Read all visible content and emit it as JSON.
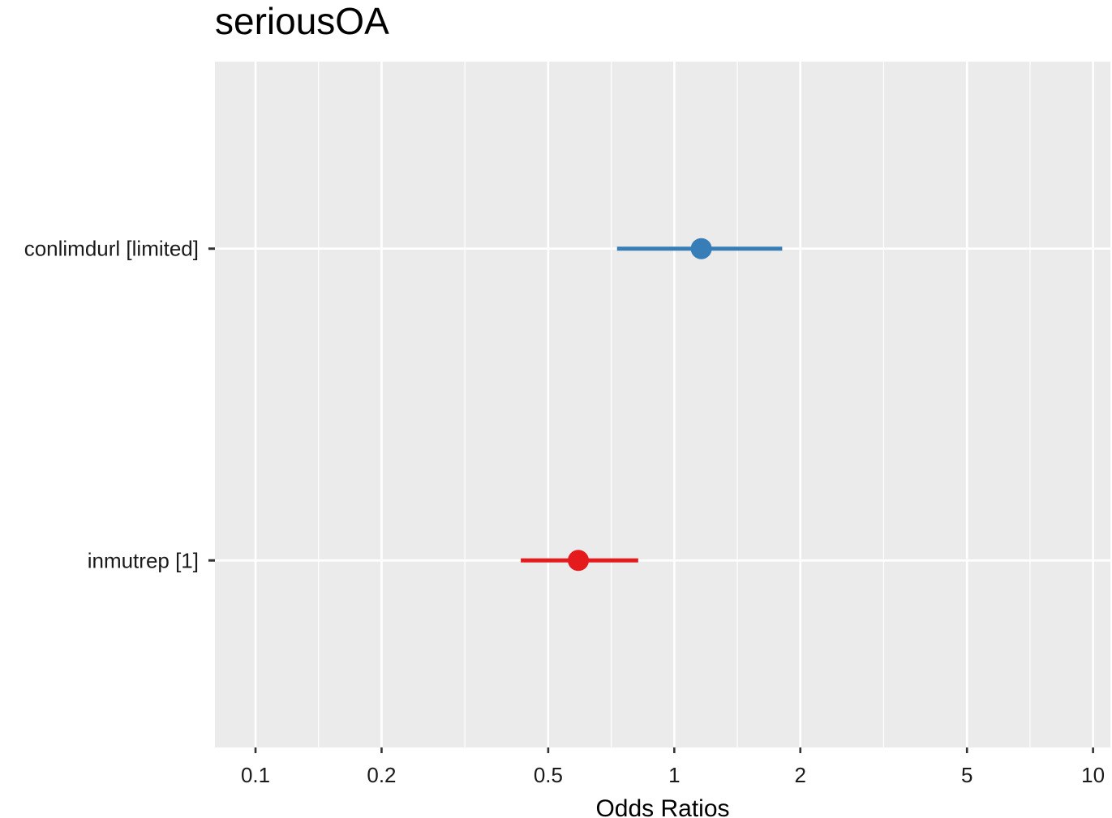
{
  "chart_data": {
    "type": "forest",
    "title": "seriousOA",
    "xlabel": "Odds Ratios",
    "ylabel": "",
    "x_scale": "log10",
    "xlim": [
      0.08,
      11.0
    ],
    "x_ticks": [
      0.1,
      0.2,
      0.5,
      1,
      2,
      5,
      10
    ],
    "x_tick_labels": [
      "0.1",
      "0.2",
      "0.5",
      "1",
      "2",
      "5",
      "10"
    ],
    "grid": true,
    "legend": "none",
    "categories": [
      "conlimdurl [limited]",
      "inmutrep [1]"
    ],
    "estimates": [
      {
        "term": "conlimdurl [limited]",
        "estimate": 1.16,
        "conf_low": 0.73,
        "conf_high": 1.81,
        "color": "#377EB8"
      },
      {
        "term": "inmutrep [1]",
        "estimate": 0.59,
        "conf_low": 0.43,
        "conf_high": 0.82,
        "color": "#E41A1C"
      }
    ],
    "colors": {
      "panel_background": "#EBEBEB",
      "grid_major": "#FFFFFF",
      "grid_minor": "#FFFFFF",
      "tick_mark": "#333333"
    }
  }
}
